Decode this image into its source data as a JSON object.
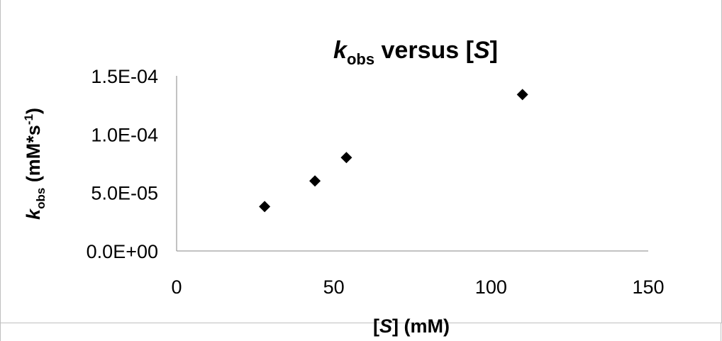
{
  "chart_data": {
    "type": "scatter",
    "title": {
      "symbol": "k",
      "subscript": "obs",
      "rest": " versus [",
      "var": "S",
      "close": "]"
    },
    "xlabel": {
      "open": "[",
      "var": "S",
      "rest": "] (mM)"
    },
    "ylabel": {
      "symbol": "k",
      "subscript": "obs",
      "rest": " (mM*s",
      "superscript": "-1",
      "close": ")"
    },
    "xlim": [
      0,
      150
    ],
    "ylim": [
      0,
      0.00015
    ],
    "xticks": [
      "0",
      "50",
      "100",
      "150"
    ],
    "yticks": [
      "0.0E+00",
      "5.0E-05",
      "1.0E-04",
      "1.5E-04"
    ],
    "grid": false,
    "legend": "none",
    "marker": "diamond",
    "marker_color": "#000000",
    "series": [
      {
        "x": [
          28,
          44,
          54,
          110
        ],
        "y": [
          3.8e-05,
          6e-05,
          8e-05,
          0.000134
        ]
      }
    ]
  }
}
